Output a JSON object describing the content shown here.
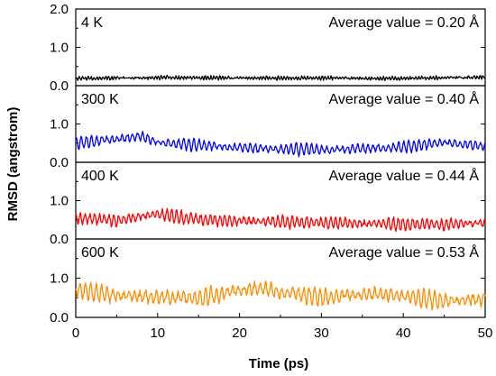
{
  "chart_data": {
    "type": "line",
    "xlabel": "Time (ps)",
    "ylabel": "RMSD (angstrom)",
    "xlim": [
      0,
      50
    ],
    "xticks": [
      0,
      10,
      20,
      30,
      40,
      50
    ],
    "ylim": [
      0,
      2.0
    ],
    "grid": false,
    "panels": [
      {
        "temperature_label": "4 K",
        "annotation": "Average value = 0.20 Å",
        "color": "#000000",
        "yticks": [
          "0.0",
          "1.0",
          "2.0"
        ],
        "series": {
          "base": 0.2,
          "amp": 0.05,
          "freq": 2.8,
          "noise": 0.025,
          "x": [
            0,
            10,
            20,
            30,
            40,
            50
          ],
          "y": [
            0.19,
            0.21,
            0.2,
            0.2,
            0.19,
            0.22
          ]
        }
      },
      {
        "temperature_label": "300 K",
        "annotation": "Average value = 0.40 Å",
        "color": "#0000ff",
        "yticks": [
          "0.0",
          "1.0"
        ],
        "series": {
          "base": 0.4,
          "amp": 0.16,
          "freq": 1.6,
          "noise": 0.04,
          "x": [
            0,
            8,
            10,
            20,
            30,
            40,
            45,
            50
          ],
          "y": [
            0.5,
            0.68,
            0.52,
            0.38,
            0.32,
            0.4,
            0.52,
            0.42
          ]
        }
      },
      {
        "temperature_label": "400 K",
        "annotation": "Average value = 0.44 Å",
        "color": "#ff0000",
        "yticks": [
          "0.0",
          "1.0"
        ],
        "series": {
          "base": 0.44,
          "amp": 0.18,
          "freq": 1.7,
          "noise": 0.05,
          "x": [
            0,
            5,
            10,
            15,
            25,
            35,
            45,
            50
          ],
          "y": [
            0.55,
            0.48,
            0.65,
            0.5,
            0.45,
            0.4,
            0.38,
            0.42
          ]
        }
      },
      {
        "temperature_label": "600 K",
        "annotation": "Average value = 0.53 Å",
        "color": "#ff8c00",
        "yticks": [
          "0.0",
          "1.0"
        ],
        "series": {
          "base": 0.53,
          "amp": 0.22,
          "freq": 1.5,
          "noise": 0.07,
          "x": [
            0,
            5,
            10,
            15,
            22,
            30,
            36,
            45,
            50
          ],
          "y": [
            0.7,
            0.55,
            0.52,
            0.5,
            0.75,
            0.5,
            0.62,
            0.42,
            0.45
          ]
        }
      }
    ]
  }
}
